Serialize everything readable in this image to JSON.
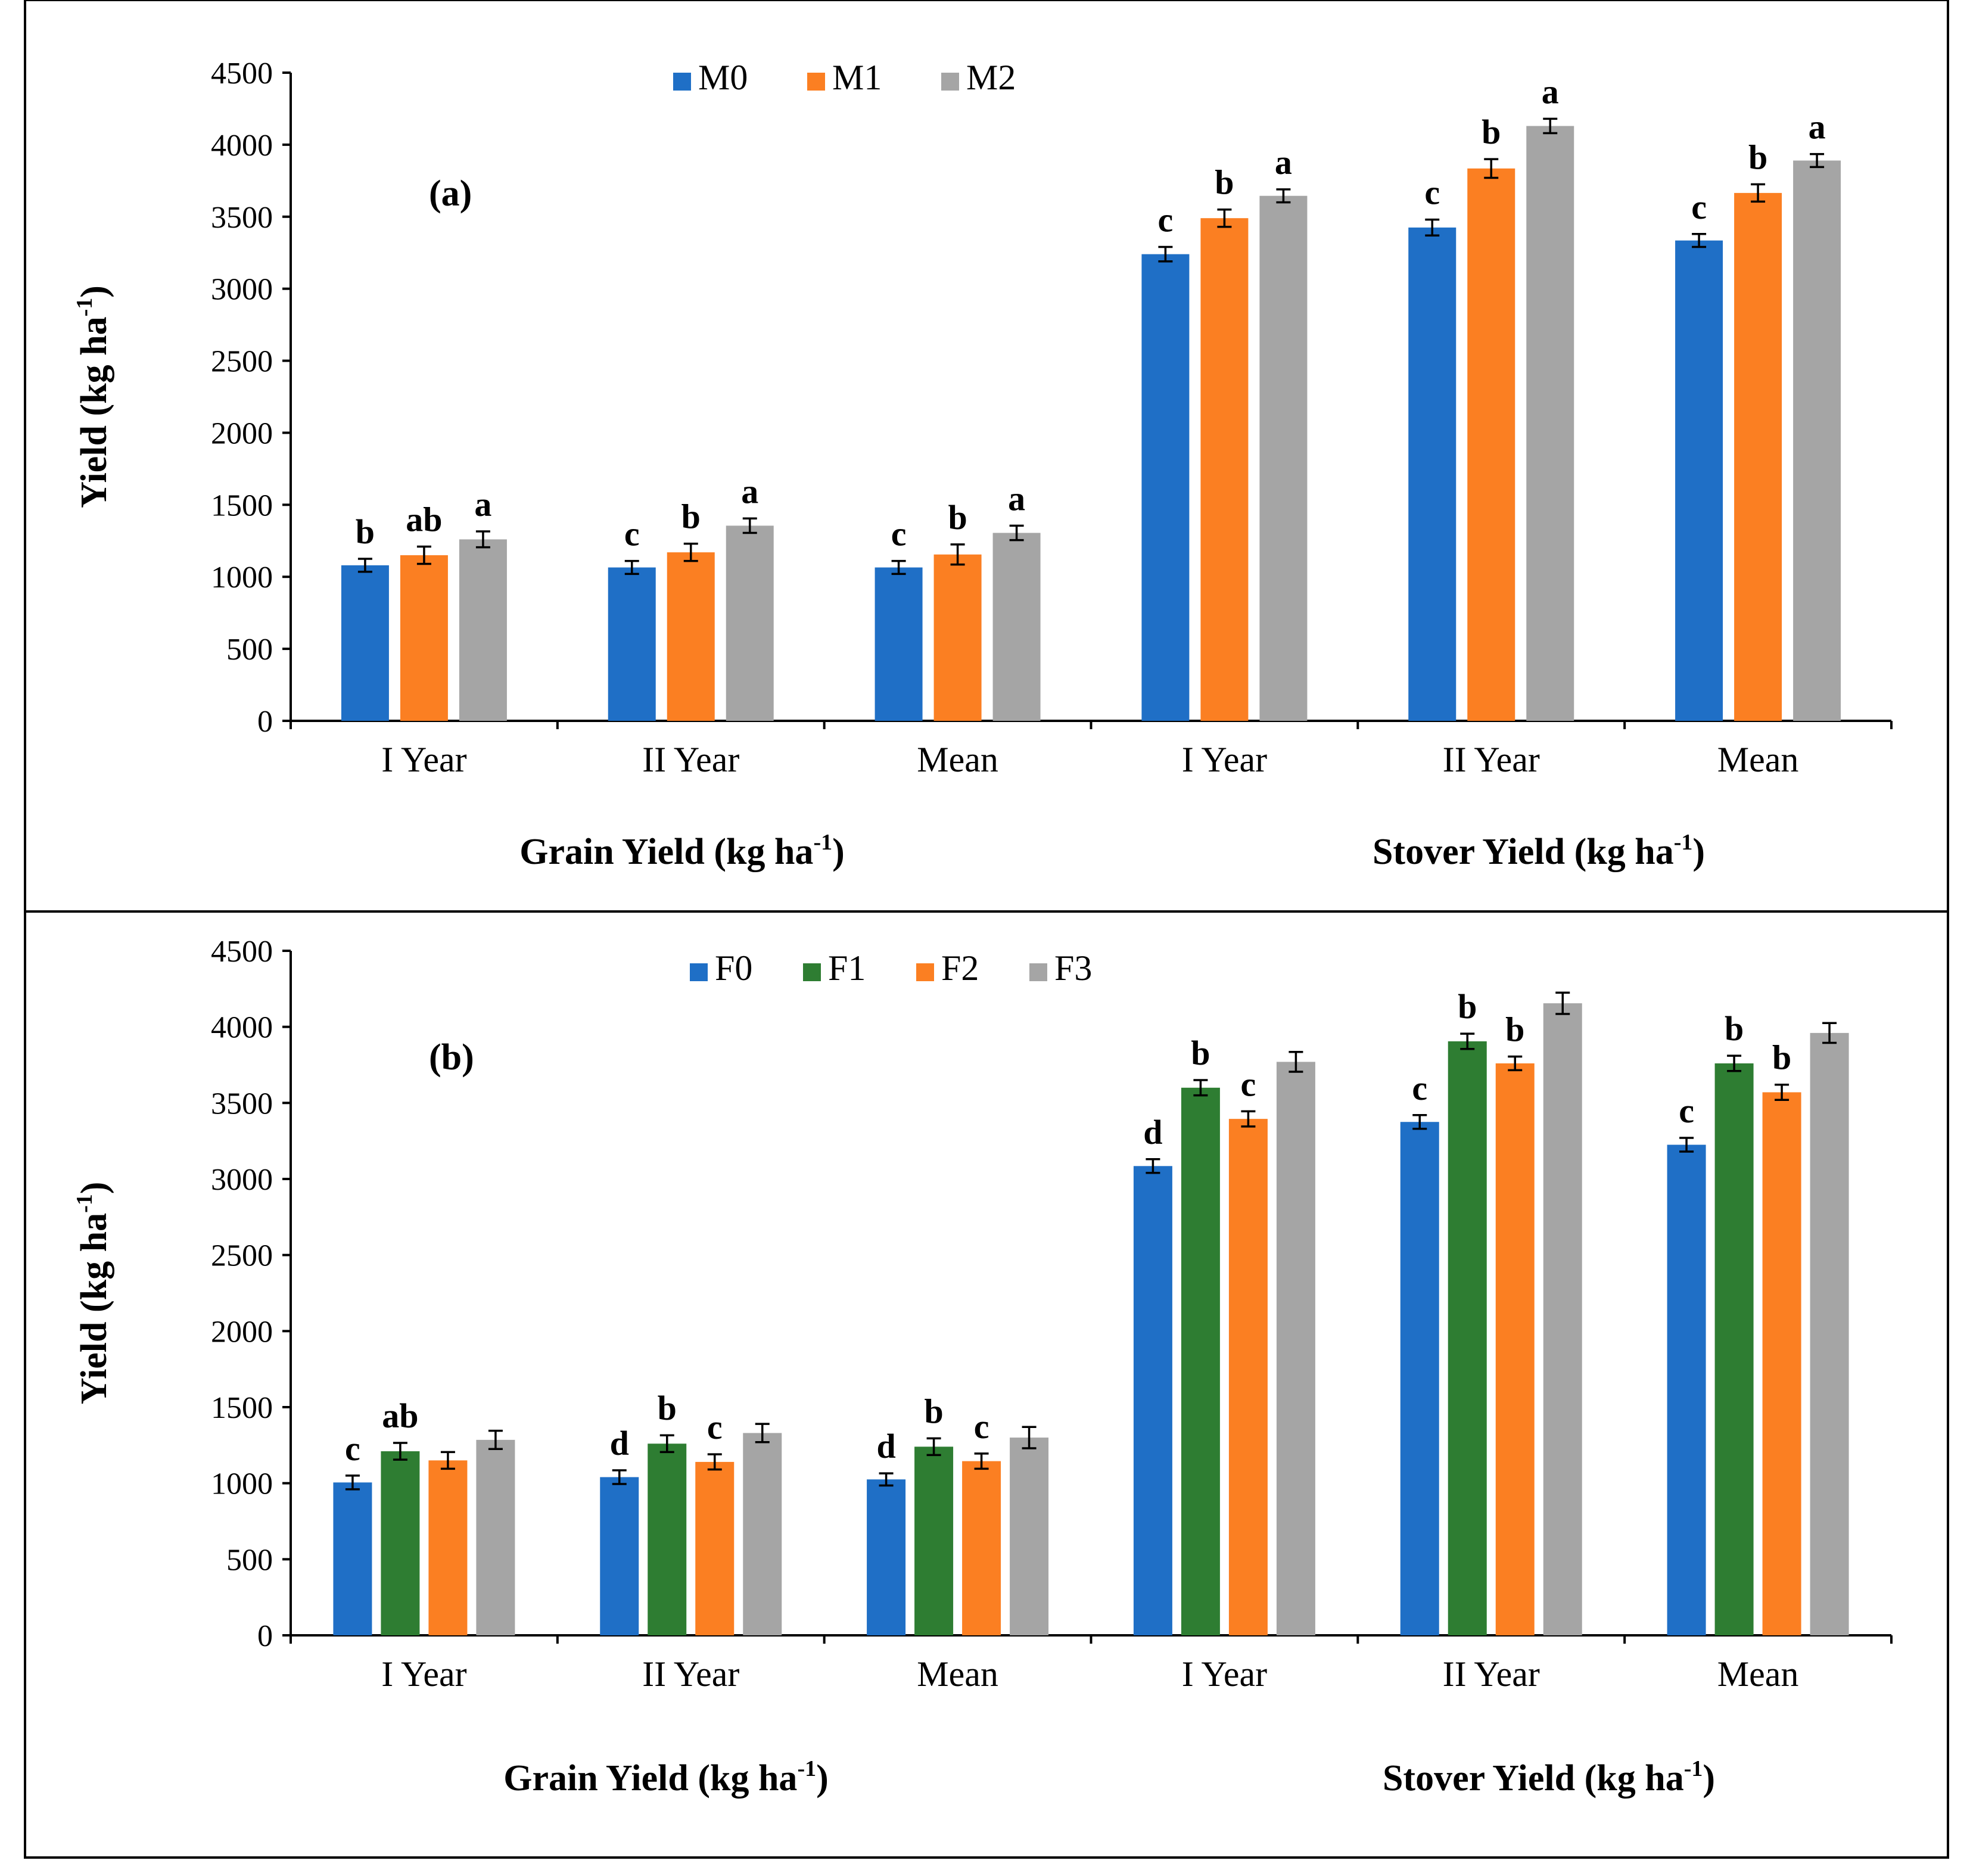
{
  "chart_data": [
    {
      "type": "bar",
      "panel_label": "(a)",
      "title": "",
      "ylabel": "Yield (kg ha",
      "ylabel_sup": "-1",
      "ylabel_end": ")",
      "ylim": [
        0,
        4500
      ],
      "yticks": [
        0,
        500,
        1000,
        1500,
        2000,
        2500,
        3000,
        3500,
        4000,
        4500
      ],
      "grid": false,
      "legend_position": "top-center",
      "categories": [
        "I Year",
        "II Year",
        "Mean",
        "I Year",
        "II Year",
        "Mean"
      ],
      "groups": [
        {
          "label": "Grain Yield (kg ha",
          "sup": "-1",
          "end": ")"
        },
        {
          "label": "Stover Yield (kg ha",
          "sup": "-1",
          "end": ")"
        }
      ],
      "series": [
        {
          "name": "M0",
          "color": "#1f6fc6",
          "values": [
            1080,
            1065,
            1065,
            3240,
            3425,
            3335
          ],
          "errors": [
            45,
            45,
            45,
            50,
            55,
            45
          ],
          "letters": [
            "b",
            "c",
            "c",
            "c",
            "c",
            "c"
          ]
        },
        {
          "name": "M1",
          "color": "#fb7f22",
          "values": [
            1150,
            1170,
            1155,
            3490,
            3835,
            3665
          ],
          "errors": [
            60,
            60,
            70,
            60,
            65,
            60
          ],
          "letters": [
            "ab",
            "b",
            "b",
            "b",
            "b",
            "b"
          ]
        },
        {
          "name": "M2",
          "color": "#a5a5a5",
          "values": [
            1260,
            1355,
            1305,
            3645,
            4130,
            3890
          ],
          "errors": [
            55,
            50,
            50,
            45,
            50,
            45
          ],
          "letters": [
            "a",
            "a",
            "a",
            "a",
            "a",
            "a"
          ]
        }
      ]
    },
    {
      "type": "bar",
      "panel_label": "(b)",
      "title": "",
      "ylabel": "Yield (kg ha",
      "ylabel_sup": "-1",
      "ylabel_end": ")",
      "ylim": [
        0,
        4500
      ],
      "yticks": [
        0,
        500,
        1000,
        1500,
        2000,
        2500,
        3000,
        3500,
        4000,
        4500
      ],
      "grid": false,
      "legend_position": "top-center",
      "categories": [
        "I Year",
        "II Year",
        "Mean",
        "I Year",
        "II Year",
        "Mean"
      ],
      "groups": [
        {
          "label": "Grain Yield (kg ha",
          "sup": "-1",
          "end": ")"
        },
        {
          "label": "Stover Yield (kg ha",
          "sup": "-1",
          "end": ")"
        }
      ],
      "series": [
        {
          "name": "F0",
          "color": "#1f6fc6",
          "values": [
            1005,
            1040,
            1025,
            3085,
            3375,
            3225
          ],
          "errors": [
            45,
            45,
            40,
            45,
            45,
            45
          ],
          "letters": [
            "c",
            "d",
            "d",
            "d",
            "c",
            "c"
          ]
        },
        {
          "name": "F1",
          "color": "#2e7d32",
          "values": [
            1210,
            1260,
            1240,
            3600,
            3905,
            3760
          ],
          "errors": [
            55,
            55,
            55,
            50,
            50,
            50
          ],
          "letters": [
            "ab",
            "b",
            "b",
            "b",
            "b",
            "b"
          ]
        },
        {
          "name": "F2",
          "color": "#fb7f22",
          "values": [
            1150,
            1140,
            1145,
            3395,
            3760,
            3570
          ],
          "errors": [
            55,
            50,
            50,
            50,
            45,
            50
          ],
          "letters": [
            "",
            "c",
            "c",
            "c",
            "b",
            "b"
          ]
        },
        {
          "name": "F3",
          "color": "#a5a5a5",
          "values": [
            1285,
            1330,
            1300,
            3770,
            4155,
            3960
          ],
          "errors": [
            60,
            60,
            70,
            65,
            70,
            65
          ],
          "letters": [
            "",
            "",
            "",
            "",
            "",
            ""
          ]
        }
      ]
    }
  ]
}
